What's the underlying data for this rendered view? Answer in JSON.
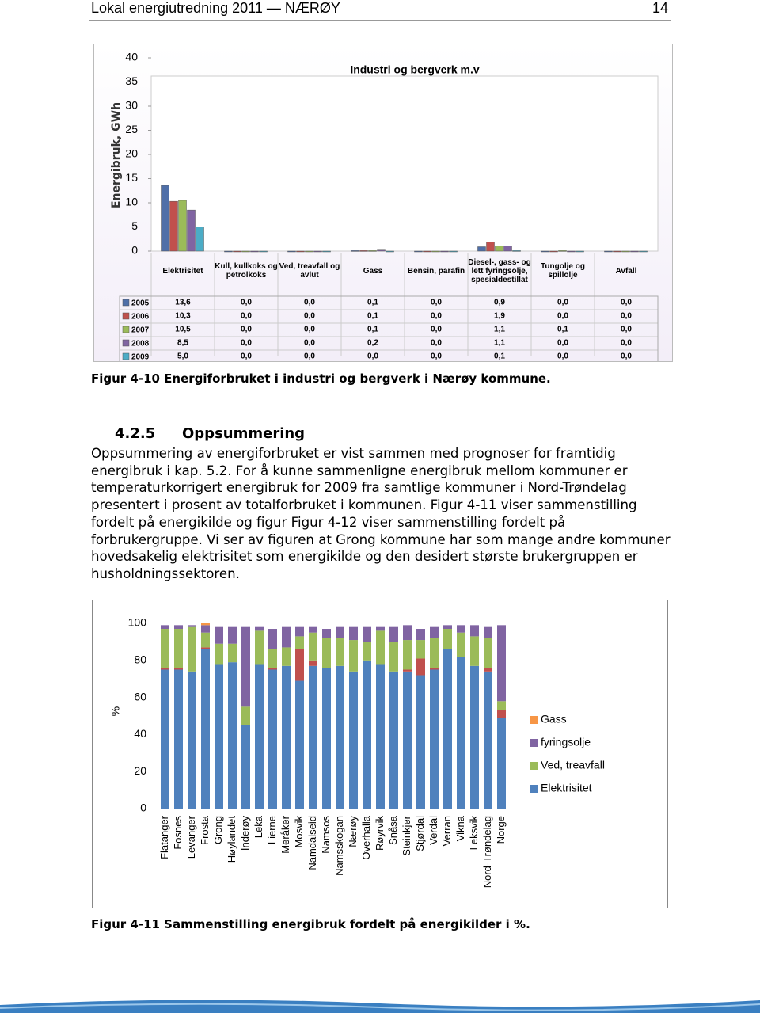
{
  "header": {
    "title": "Lokal energiutredning 2011 — NÆRØY",
    "page": "14"
  },
  "chart_data": [
    {
      "type": "bar",
      "title": "Industri og bergverk m.v",
      "y_label": "Energibruk, GWh",
      "categories": [
        "Elektrisitet",
        "Kull, kullkoks og petrolkoks",
        "Ved, treavfall og avlut",
        "Gass",
        "Bensin, parafin",
        "Diesel-, gass- og lett fyringsolje, spesialdestillat",
        "Tungolje og spillolje",
        "Avfall"
      ],
      "series": [
        {
          "name": "2005",
          "color": "#4f6fa8",
          "values": [
            13.6,
            0,
            0,
            0.1,
            0,
            0.9,
            0,
            0
          ],
          "value_labels": [
            "13,6",
            "0,0",
            "0,0",
            "0,1",
            "0,0",
            "0,9",
            "0,0",
            "0,0"
          ]
        },
        {
          "name": "2006",
          "color": "#c0504d",
          "values": [
            10.3,
            0,
            0,
            0.1,
            0,
            1.9,
            0,
            0
          ],
          "value_labels": [
            "10,3",
            "0,0",
            "0,0",
            "0,1",
            "0,0",
            "1,9",
            "0,0",
            "0,0"
          ]
        },
        {
          "name": "2007",
          "color": "#9bbb59",
          "values": [
            10.5,
            0,
            0,
            0.1,
            0,
            1.1,
            0.1,
            0
          ],
          "value_labels": [
            "10,5",
            "0,0",
            "0,0",
            "0,1",
            "0,0",
            "1,1",
            "0,1",
            "0,0"
          ]
        },
        {
          "name": "2008",
          "color": "#8064a2",
          "values": [
            8.5,
            0,
            0,
            0.2,
            0,
            1.1,
            0,
            0
          ],
          "value_labels": [
            "8,5",
            "0,0",
            "0,0",
            "0,2",
            "0,0",
            "1,1",
            "0,0",
            "0,0"
          ]
        },
        {
          "name": "2009",
          "color": "#4bacc6",
          "values": [
            5.0,
            0,
            0,
            0,
            0,
            0.1,
            0,
            0
          ],
          "value_labels": [
            "5,0",
            "0,0",
            "0,0",
            "0,0",
            "0,0",
            "0,1",
            "0,0",
            "0,0"
          ]
        }
      ],
      "ylim": [
        0,
        40
      ],
      "yticks": [
        0,
        5,
        10,
        15,
        20,
        25,
        30,
        35,
        40
      ],
      "caption": "Figur 4-10 Energiforbruket i industri og bergverk i Nærøy kommune."
    },
    {
      "type": "stacked_bar",
      "y_label": "%",
      "categories": [
        "Flatanger",
        "Fosnes",
        "Levanger",
        "Frosta",
        "Grong",
        "Høylandet",
        "Inderøy",
        "Leka",
        "Lierne",
        "Meråker",
        "Mosvik",
        "Namdalseid",
        "Namsos",
        "Namsskogan",
        "Nærøy",
        "Overhalla",
        "Røyrvik",
        "Snåsa",
        "Steinkjer",
        "Stjørdal",
        "Verdal",
        "Verran",
        "Vikna",
        "Leksvik",
        "Nord-Trøndelag",
        "Norge"
      ],
      "series": [
        {
          "name": "Elektrisitet",
          "color": "#4f81bd",
          "values": [
            75,
            75,
            74,
            86,
            78,
            79,
            45,
            78,
            75,
            77,
            69,
            77,
            76,
            77,
            74,
            80,
            78,
            74,
            74,
            72,
            75,
            86,
            82,
            77,
            74,
            49
          ]
        },
        {
          "color": "#c0504d",
          "values": [
            1,
            1,
            0,
            1,
            0,
            0,
            0,
            0,
            1,
            0,
            17,
            3,
            0,
            0,
            0,
            0,
            0,
            0,
            1,
            9,
            1,
            0,
            0,
            0,
            2,
            4
          ]
        },
        {
          "name": "Ved, treavfall",
          "color": "#9bbb59",
          "values": [
            21,
            21,
            24,
            8,
            11,
            10,
            10,
            18,
            10,
            10,
            7,
            15,
            16,
            15,
            17,
            10,
            18,
            16,
            16,
            10,
            16,
            11,
            13,
            16,
            16,
            5
          ]
        },
        {
          "name": "fyringsolje",
          "color": "#8064a2",
          "values": [
            2,
            2,
            1,
            4,
            9,
            9,
            43,
            2,
            11,
            11,
            5,
            3,
            5,
            6,
            7,
            8,
            2,
            8,
            8,
            6,
            6,
            2,
            4,
            6,
            6,
            41
          ]
        },
        {
          "name": "Gass",
          "color": "#f79646",
          "values": [
            0,
            0,
            0,
            1,
            0,
            0,
            0,
            0,
            0,
            0,
            0,
            0,
            0,
            0,
            0,
            0,
            0,
            0,
            0,
            0,
            0,
            0,
            0,
            0,
            0,
            0
          ]
        }
      ],
      "ylim": [
        0,
        100
      ],
      "yticks": [
        0,
        20,
        40,
        60,
        80,
        100
      ],
      "caption": "Figur 4-11 Sammenstilling energibruk fordelt på energikilder i %."
    }
  ],
  "section": {
    "number": "4.2.5",
    "title": "Oppsummering",
    "paragraph": "Oppsummering av energiforbruket er vist sammen med prognoser for framtidig energibruk i kap. 5.2. For å kunne sammenligne energibruk mellom kommuner er temperaturkorrigert energibruk for 2009 fra samtlige kommuner i Nord-Trøndelag presentert i prosent av totalforbruket i kommunen. Figur 4-11 viser sammenstilling fordelt på energikilde og figur Figur 4-12 viser sammenstilling fordelt på forbrukergruppe. Vi ser av figuren at Grong kommune har som mange andre kommuner hovedsakelig elektrisitet som energikilde og den desidert største brukergruppen er husholdningssektoren."
  }
}
